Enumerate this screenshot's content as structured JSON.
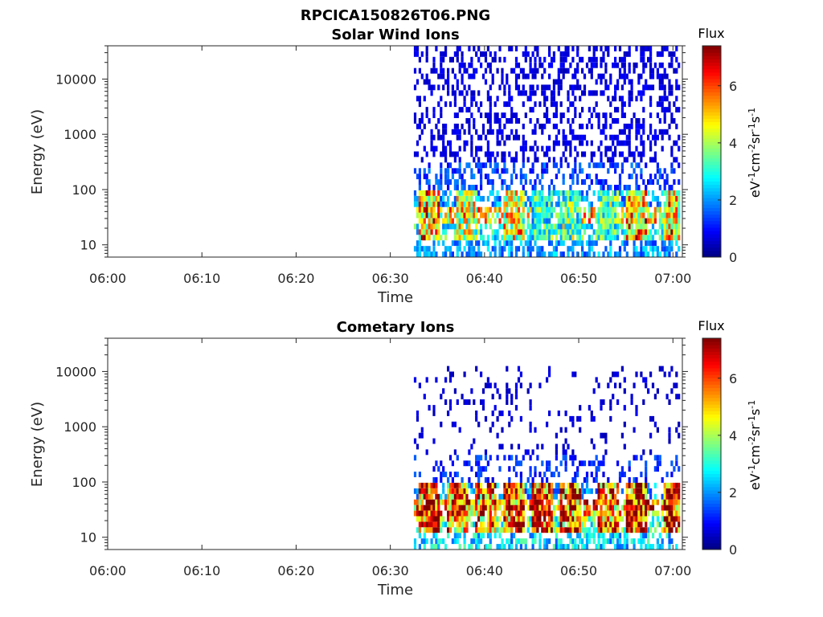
{
  "figure_title": "RPCICA150826T06.PNG",
  "chart_data": [
    {
      "type": "heatmap",
      "title": "Solar Wind Ions",
      "xlabel": "Time",
      "ylabel": "Energy (eV)",
      "x_ticks": [
        "06:00",
        "06:10",
        "06:20",
        "06:30",
        "06:40",
        "06:50",
        "07:00"
      ],
      "xlim": [
        "06:00",
        "07:01"
      ],
      "y_scale": "log",
      "y_ticks": [
        "10",
        "100",
        "1000",
        "10000"
      ],
      "ylim": [
        6,
        40000
      ],
      "data_start": "06:32:30",
      "colorbar": {
        "label": "Flux",
        "unit": "eV-1cm-2sr-1s-1",
        "range": [
          0,
          7.4
        ],
        "ticks": [
          "0",
          "2",
          "4",
          "6"
        ]
      },
      "bands": [
        {
          "e_lo": 6,
          "e_hi": 12,
          "value": 2.0,
          "density": 0.55
        },
        {
          "e_lo": 12,
          "e_hi": 25,
          "value": 3.0,
          "density": 0.6
        },
        {
          "e_lo": 25,
          "e_hi": 50,
          "value": 4.8,
          "density": 0.65
        },
        {
          "e_lo": 50,
          "e_hi": 100,
          "value": 2.0,
          "density": 0.5
        },
        {
          "e_lo": 100,
          "e_hi": 300,
          "value": 1.4,
          "density": 0.4
        },
        {
          "e_lo": 300,
          "e_hi": 40000,
          "value": 0.7,
          "density": 0.35
        }
      ],
      "bursts": [
        {
          "t": "06:34",
          "value": 5.5
        },
        {
          "t": "06:38",
          "value": 4.5
        },
        {
          "t": "06:43",
          "value": 4.5
        },
        {
          "t": "06:46",
          "value": 3.0
        },
        {
          "t": "06:49",
          "value": 3.5
        },
        {
          "t": "06:53",
          "value": 3.5
        },
        {
          "t": "06:56",
          "value": 5.0
        },
        {
          "t": "07:00",
          "value": 5.0
        }
      ]
    },
    {
      "type": "heatmap",
      "title": "Cometary Ions",
      "xlabel": "Time",
      "ylabel": "Energy (eV)",
      "x_ticks": [
        "06:00",
        "06:10",
        "06:20",
        "06:30",
        "06:40",
        "06:50",
        "07:00"
      ],
      "xlim": [
        "06:00",
        "07:01"
      ],
      "y_scale": "log",
      "y_ticks": [
        "10",
        "100",
        "1000",
        "10000"
      ],
      "ylim": [
        6,
        40000
      ],
      "data_start": "06:32:30",
      "colorbar": {
        "label": "Flux",
        "unit": "eV-1cm-2sr-1s-1",
        "range": [
          0,
          7.4
        ],
        "ticks": [
          "0",
          "2",
          "4",
          "6"
        ]
      },
      "bands": [
        {
          "e_lo": 6,
          "e_hi": 12,
          "value": 2.5,
          "density": 0.5
        },
        {
          "e_lo": 12,
          "e_hi": 25,
          "value": 3.5,
          "density": 0.6
        },
        {
          "e_lo": 25,
          "e_hi": 50,
          "value": 5.5,
          "density": 0.65
        },
        {
          "e_lo": 50,
          "e_hi": 100,
          "value": 2.0,
          "density": 0.4
        },
        {
          "e_lo": 100,
          "e_hi": 300,
          "value": 1.2,
          "density": 0.25
        },
        {
          "e_lo": 300,
          "e_hi": 12000,
          "value": 0.6,
          "density": 0.12
        }
      ],
      "bursts": [
        {
          "t": "06:34",
          "value": 6.8
        },
        {
          "t": "06:37",
          "value": 6.0
        },
        {
          "t": "06:40",
          "value": 6.0
        },
        {
          "t": "06:43",
          "value": 6.5
        },
        {
          "t": "06:46",
          "value": 6.5
        },
        {
          "t": "06:49",
          "value": 6.5
        },
        {
          "t": "06:53",
          "value": 6.0
        },
        {
          "t": "06:56",
          "value": 7.0
        },
        {
          "t": "07:00",
          "value": 7.0
        }
      ]
    }
  ]
}
